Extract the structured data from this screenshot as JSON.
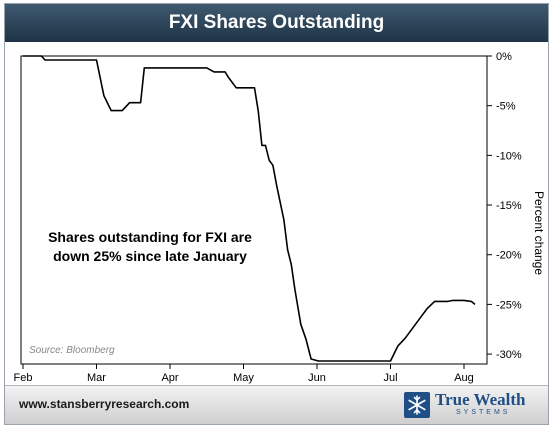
{
  "header": {
    "title": "FXI Shares Outstanding"
  },
  "chart_data": {
    "type": "line",
    "title": "FXI Shares Outstanding",
    "xlabel": "",
    "ylabel": "Percent change",
    "x_tick_labels": [
      "Feb",
      "Mar",
      "Apr",
      "May",
      "Jun",
      "Jul",
      "Aug"
    ],
    "y_ticks": [
      0,
      -5,
      -10,
      -15,
      -20,
      -25,
      -30
    ],
    "y_tick_labels": [
      "0%",
      "-5%",
      "-10%",
      "-15%",
      "-20%",
      "-25%",
      "-30%"
    ],
    "ylim": [
      -31,
      0
    ],
    "y_axis_position": "right",
    "grid": false,
    "series": [
      {
        "values_note": "x in months (0 = Feb tick), y in percent change",
        "x": [
          0,
          0.25,
          0.3,
          1.0,
          1.1,
          1.2,
          1.35,
          1.45,
          1.6,
          1.65,
          2.0,
          2.5,
          2.6,
          2.75,
          2.8,
          2.9,
          3.15,
          3.2,
          3.25,
          3.3,
          3.35,
          3.4,
          3.45,
          3.55,
          3.6,
          3.65,
          3.7,
          3.78,
          3.85,
          3.92,
          4.02,
          5.0,
          5.1,
          5.2,
          5.3,
          5.4,
          5.5,
          5.6,
          5.7,
          5.78,
          5.85,
          6.0,
          6.1,
          6.15
        ],
        "y": [
          0,
          0,
          -0.4,
          -0.4,
          -4,
          -5.5,
          -5.5,
          -4.7,
          -4.7,
          -1.2,
          -1.2,
          -1.2,
          -1.6,
          -1.6,
          -2.2,
          -3.2,
          -3.2,
          -5.5,
          -9,
          -9,
          -10.5,
          -11,
          -13,
          -16.5,
          -19.5,
          -21,
          -23.5,
          -27,
          -28.5,
          -30.5,
          -30.7,
          -30.7,
          -29.2,
          -28.4,
          -27.4,
          -26.4,
          -25.4,
          -24.7,
          -24.7,
          -24.7,
          -24.6,
          -24.6,
          -24.7,
          -25
        ]
      }
    ],
    "annotations": [
      "Shares outstanding for FXI are",
      "down 25% since late January"
    ],
    "source": "Source: Bloomberg"
  },
  "footer": {
    "url": "www.stansberryresearch.com",
    "logo_name": "True Wealth",
    "logo_sub": "SYSTEMS"
  },
  "colors": {
    "title_bar": "#2c4458",
    "line": "#000000",
    "logo": "#1f4f86"
  }
}
